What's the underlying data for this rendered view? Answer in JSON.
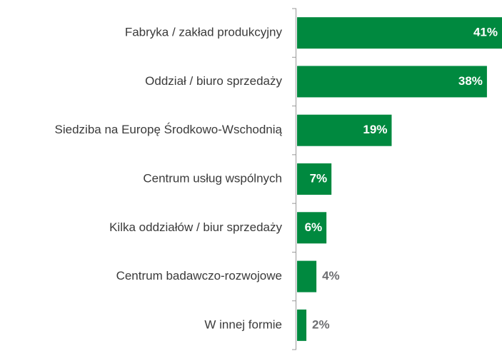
{
  "chart_data": {
    "type": "bar",
    "orientation": "horizontal",
    "categories": [
      "Fabryka / zakład produkcyjny",
      "Oddział / biuro sprzedaży",
      "Siedziba na Europę Środkowo-Wschodnią",
      "Centrum usług wspólnych",
      "Kilka oddziałów / biur sprzedaży",
      "Centrum badawczo-rozwojowe",
      "W innej formie"
    ],
    "values": [
      41,
      38,
      19,
      7,
      6,
      4,
      2
    ],
    "value_labels": [
      "41%",
      "38%",
      "19%",
      "7%",
      "6%",
      "4%",
      "2%"
    ],
    "color": "#00893f"
  }
}
